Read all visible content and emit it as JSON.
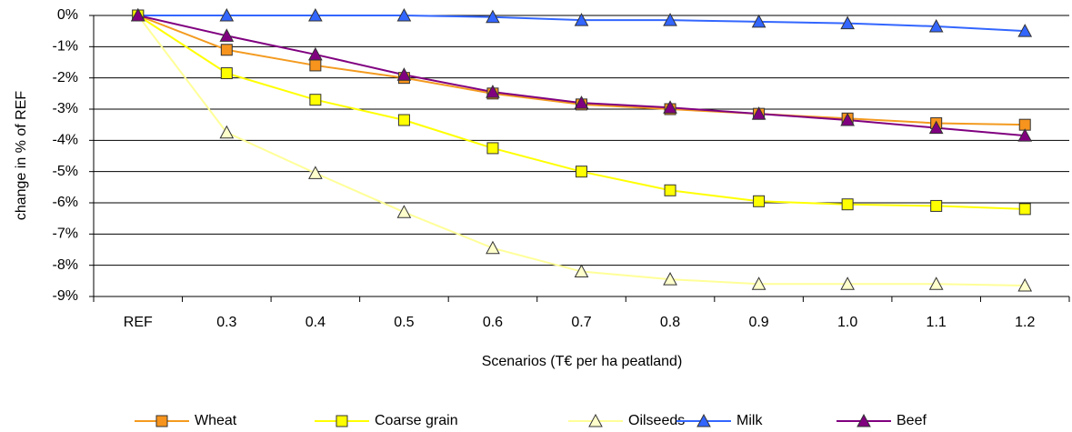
{
  "chart_data": {
    "type": "line",
    "y_label": "change in % of REF",
    "x_label": "Scenarios (T€ per ha peatland)",
    "categories": [
      "REF",
      "0.3",
      "0.4",
      "0.5",
      "0.6",
      "0.7",
      "0.8",
      "0.9",
      "1.0",
      "1.1",
      "1.2"
    ],
    "ylim": [
      -9,
      0
    ],
    "yticks": [
      {
        "value": 0,
        "label": "0%"
      },
      {
        "value": -1,
        "label": "-1%"
      },
      {
        "value": -2,
        "label": "-2%"
      },
      {
        "value": -3,
        "label": "-3%"
      },
      {
        "value": -4,
        "label": "-4%"
      },
      {
        "value": -5,
        "label": "-5%"
      },
      {
        "value": -6,
        "label": "-6%"
      },
      {
        "value": -7,
        "label": "-7%"
      },
      {
        "value": -8,
        "label": "-8%"
      },
      {
        "value": -9,
        "label": "-9%"
      }
    ],
    "grid": true,
    "legend": "bottom",
    "series": [
      {
        "name": "Wheat",
        "color": "#f39a1f",
        "marker_fill": "#f7941d",
        "marker": "square",
        "values": [
          0,
          -1.1,
          -1.6,
          -2.0,
          -2.5,
          -2.85,
          -3.0,
          -3.15,
          -3.3,
          -3.45,
          -3.5
        ]
      },
      {
        "name": "Coarse grain",
        "color": "#ffff00",
        "marker_fill": "#ffff00",
        "marker": "square",
        "values": [
          0,
          -1.85,
          -2.7,
          -3.35,
          -4.25,
          -5.0,
          -5.6,
          -5.95,
          -6.05,
          -6.1,
          -6.2
        ]
      },
      {
        "name": "Oilseeds",
        "color": "#ffff99",
        "marker_fill": "#ffffcc",
        "marker": "triangle",
        "values": [
          0,
          -3.75,
          -5.05,
          -6.3,
          -7.45,
          -8.2,
          -8.45,
          -8.6,
          -8.6,
          -8.6,
          -8.65
        ]
      },
      {
        "name": "Milk",
        "color": "#3366ff",
        "marker_fill": "#3366ff",
        "marker": "triangle",
        "values": [
          0,
          0,
          0,
          0,
          -0.05,
          -0.15,
          -0.15,
          -0.2,
          -0.25,
          -0.35,
          -0.5
        ]
      },
      {
        "name": "Beef",
        "color": "#800080",
        "marker_fill": "#800080",
        "marker": "triangle",
        "values": [
          0,
          -0.65,
          -1.25,
          -1.9,
          -2.45,
          -2.8,
          -2.95,
          -3.15,
          -3.35,
          -3.6,
          -3.85
        ]
      }
    ]
  }
}
